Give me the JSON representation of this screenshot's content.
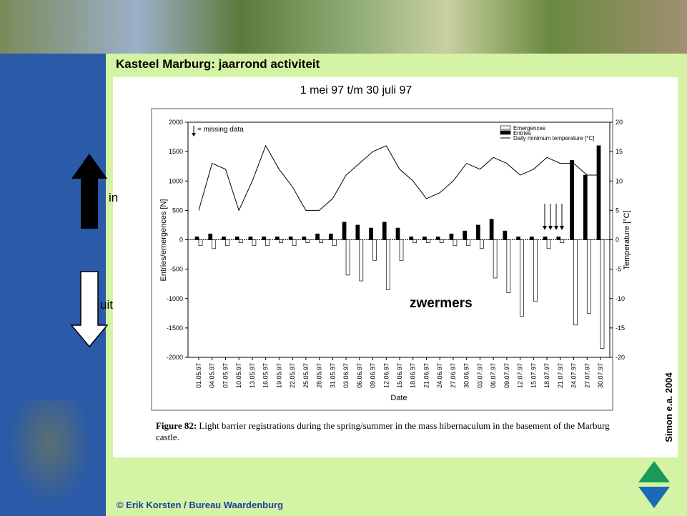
{
  "slide": {
    "title": "Kasteel Marburg: jaarrond activiteit",
    "period": "1 mei 97 t/m 30 juli 97",
    "in_label": "in",
    "out_label": "uit",
    "source": "Simon e.a. 2004",
    "footer": "© Erik Korsten / Bureau Waardenburg",
    "caption_label": "Figure 82:",
    "caption_text": "Light barrier registrations during the spring/summer in the mass hibernaculum in the basement of the Marburg castle."
  },
  "chart_data": {
    "type": "bar-line",
    "x_label": "Date",
    "y_label": "Entries/emergences [N]",
    "y2_label": "Temperature [°C]",
    "annotations": [
      "= missing data",
      "zwermers"
    ],
    "categories": [
      "01.05.97",
      "04.05.97",
      "07.05.97",
      "10.05.97",
      "13.05.97",
      "16.05.97",
      "19.05.97",
      "22.05.97",
      "25.05.97",
      "28.05.97",
      "31.05.97",
      "03.06.97",
      "06.06.97",
      "09.06.97",
      "12.06.97",
      "15.06.97",
      "18.06.97",
      "21.06.97",
      "24.06.97",
      "27.06.97",
      "30.06.97",
      "03.07.97",
      "06.07.97",
      "09.07.97",
      "12.07.97",
      "15.07.97",
      "18.07.97",
      "21.07.97",
      "24.07.97",
      "27.07.97",
      "30.07.97"
    ],
    "series": [
      {
        "name": "Emergences",
        "color": "#ffffff",
        "values": [
          -100,
          -150,
          -100,
          -50,
          -100,
          -100,
          -50,
          -100,
          -50,
          -50,
          -100,
          -600,
          -700,
          -350,
          -850,
          -350,
          -50,
          -50,
          -50,
          -100,
          -100,
          -150,
          -650,
          -900,
          -1300,
          -1050,
          -150,
          -50,
          -1450,
          -1250,
          -1850
        ]
      },
      {
        "name": "Entries",
        "color": "#000000",
        "values": [
          50,
          100,
          50,
          50,
          50,
          50,
          50,
          50,
          50,
          100,
          100,
          300,
          250,
          200,
          300,
          200,
          50,
          50,
          50,
          100,
          150,
          250,
          350,
          150,
          50,
          50,
          50,
          50,
          1350,
          1100,
          1600
        ]
      },
      {
        "name": "Daily minimum temperature [°C]",
        "color": "#000000",
        "axis": "y2",
        "values": [
          5,
          13,
          12,
          5,
          10,
          16,
          12,
          9,
          5,
          5,
          7,
          11,
          13,
          15,
          16,
          12,
          10,
          7,
          8,
          10,
          13,
          12,
          14,
          13,
          11,
          12,
          14,
          13,
          13,
          11,
          11
        ]
      }
    ],
    "ylim": [
      -2000,
      2000
    ],
    "yticks": [
      -2000,
      -1500,
      -1000,
      -500,
      0,
      500,
      1000,
      1500,
      2000
    ],
    "y2lim": [
      -20,
      20
    ],
    "y2ticks": [
      -20,
      -15,
      -10,
      -5,
      0,
      5,
      10,
      15,
      20
    ],
    "legend": "upper right",
    "grid": false
  }
}
